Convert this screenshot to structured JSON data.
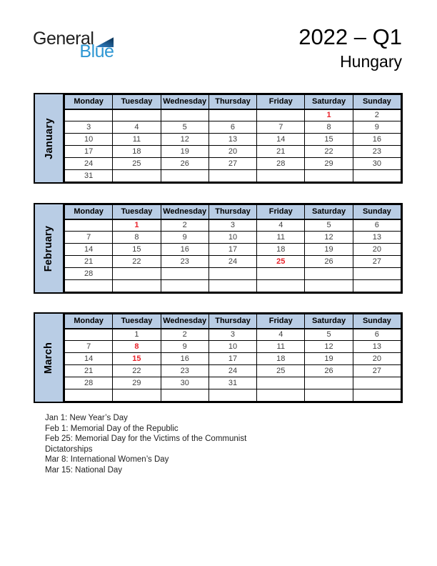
{
  "logo": {
    "word_top": "General",
    "word_bottom": "Blue",
    "triangle_icon": "blue-right-triangle"
  },
  "header": {
    "title": "2022 – Q1",
    "subtitle": "Hungary"
  },
  "calendar": {
    "day_headers": [
      "Monday",
      "Tuesday",
      "Wednesday",
      "Thursday",
      "Friday",
      "Saturday",
      "Sunday"
    ],
    "months": [
      {
        "name": "January",
        "weeks": [
          [
            "",
            "",
            "",
            "",
            "",
            "1",
            "2"
          ],
          [
            "3",
            "4",
            "5",
            "6",
            "7",
            "8",
            "9"
          ],
          [
            "10",
            "11",
            "12",
            "13",
            "14",
            "15",
            "16"
          ],
          [
            "17",
            "18",
            "19",
            "20",
            "21",
            "22",
            "23"
          ],
          [
            "24",
            "25",
            "26",
            "27",
            "28",
            "29",
            "30"
          ],
          [
            "31",
            "",
            "",
            "",
            "",
            "",
            ""
          ]
        ],
        "holidays": [
          "1"
        ]
      },
      {
        "name": "February",
        "weeks": [
          [
            "",
            "1",
            "2",
            "3",
            "4",
            "5",
            "6"
          ],
          [
            "7",
            "8",
            "9",
            "10",
            "11",
            "12",
            "13"
          ],
          [
            "14",
            "15",
            "16",
            "17",
            "18",
            "19",
            "20"
          ],
          [
            "21",
            "22",
            "23",
            "24",
            "25",
            "26",
            "27"
          ],
          [
            "28",
            "",
            "",
            "",
            "",
            "",
            ""
          ],
          [
            "",
            "",
            "",
            "",
            "",
            "",
            ""
          ]
        ],
        "holidays": [
          "1",
          "25"
        ]
      },
      {
        "name": "March",
        "weeks": [
          [
            "",
            "1",
            "2",
            "3",
            "4",
            "5",
            "6"
          ],
          [
            "7",
            "8",
            "9",
            "10",
            "11",
            "12",
            "13"
          ],
          [
            "14",
            "15",
            "16",
            "17",
            "18",
            "19",
            "20"
          ],
          [
            "21",
            "22",
            "23",
            "24",
            "25",
            "26",
            "27"
          ],
          [
            "28",
            "29",
            "30",
            "31",
            "",
            "",
            ""
          ],
          [
            "",
            "",
            "",
            "",
            "",
            "",
            ""
          ]
        ],
        "holidays": [
          "8",
          "15"
        ]
      }
    ]
  },
  "holidays_list": {
    "items": [
      "Jan 1: New Year’s Day",
      "Feb 1: Memorial Day of the Republic",
      "Feb 25: Memorial Day for the Victims of the Communist Dictatorships",
      "Mar 8: International Women’s Day",
      "Mar 15: National Day"
    ]
  },
  "colors": {
    "header_fill": "#b9cde5",
    "holiday_red": "#e8222a",
    "logo_blue": "#2e97d3",
    "logo_dark": "#1f1f1f",
    "border": "#000000",
    "date_text": "#3f3f3f"
  }
}
